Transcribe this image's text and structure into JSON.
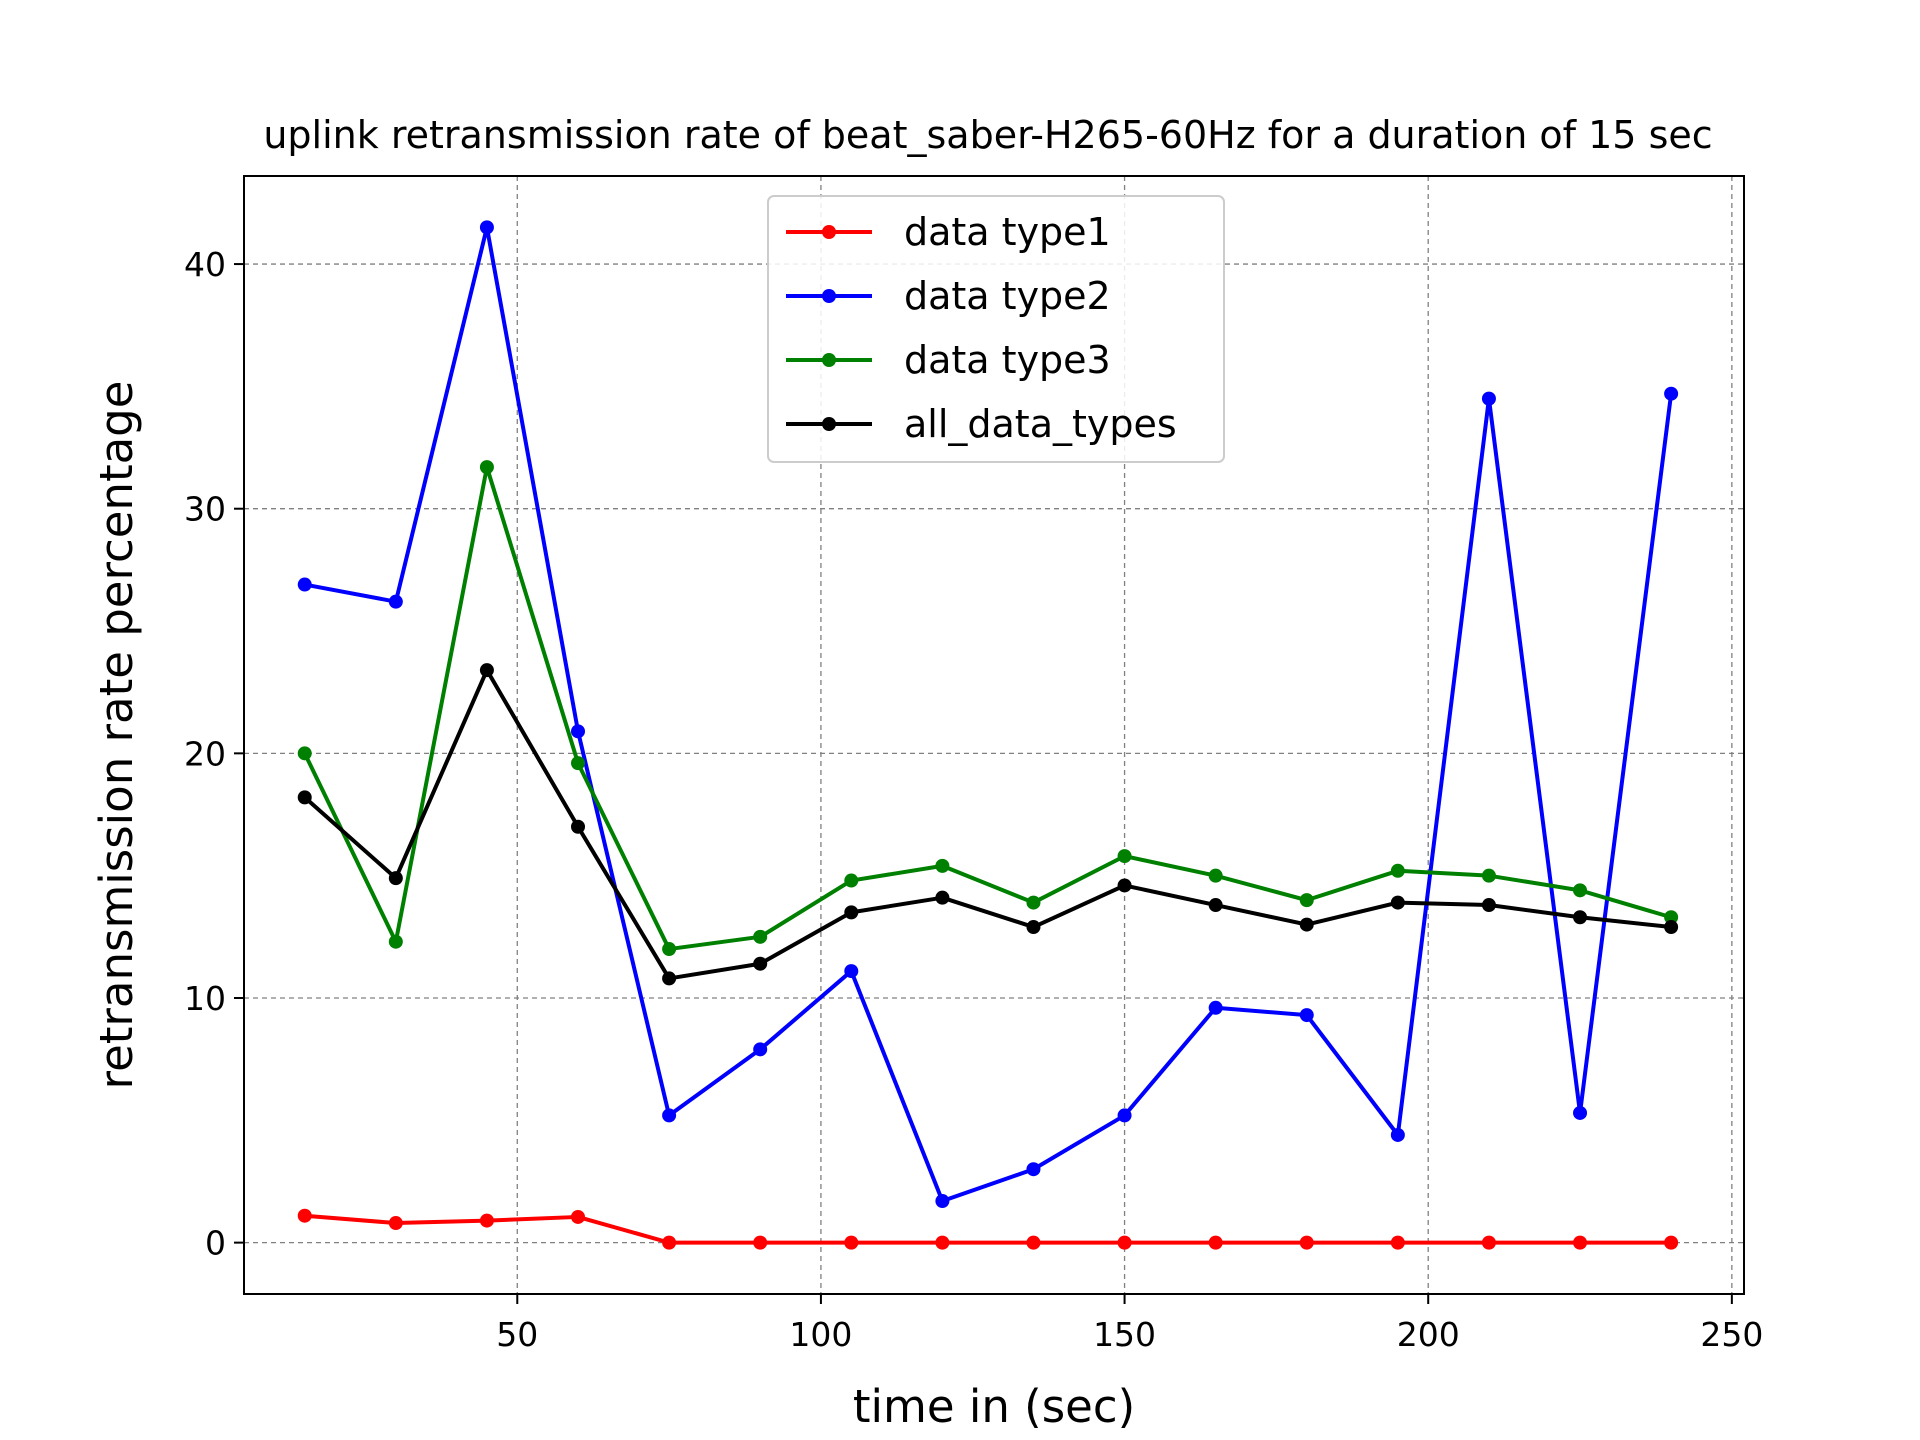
{
  "chart_data": {
    "type": "line",
    "title": "uplink retransmission rate of beat_saber-H265-60Hz for a duration of 15 sec",
    "xlabel": "time in (sec)",
    "ylabel": "retransmission rate percentage",
    "xlim": [
      5,
      252
    ],
    "ylim": [
      -2.1,
      43.6
    ],
    "xticks": [
      50,
      100,
      150,
      200,
      250
    ],
    "yticks": [
      0,
      10,
      20,
      30,
      40
    ],
    "grid": true,
    "legend_position": "upper-center",
    "x": [
      15,
      30,
      45,
      60,
      75,
      90,
      105,
      120,
      135,
      150,
      165,
      180,
      195,
      210,
      225,
      240
    ],
    "series": [
      {
        "name": "data type1",
        "color": "#ff0000",
        "values": [
          1.1,
          0.8,
          0.9,
          1.05,
          0,
          0,
          0,
          0,
          0,
          0,
          0,
          0,
          0,
          0,
          0,
          0
        ]
      },
      {
        "name": "data type2",
        "color": "#0000ff",
        "values": [
          26.9,
          26.2,
          41.5,
          20.9,
          5.2,
          7.9,
          11.1,
          1.7,
          3.0,
          5.2,
          9.6,
          9.3,
          4.4,
          34.5,
          5.3,
          34.7
        ]
      },
      {
        "name": "data type3",
        "color": "#008000",
        "values": [
          20.0,
          12.3,
          31.7,
          19.6,
          12.0,
          12.5,
          14.8,
          15.4,
          13.9,
          15.8,
          15.0,
          14.0,
          15.2,
          15.0,
          14.4,
          13.3
        ]
      },
      {
        "name": "all_data_types",
        "color": "#000000",
        "values": [
          18.2,
          14.9,
          23.4,
          17.0,
          10.8,
          11.4,
          13.5,
          14.1,
          12.9,
          14.6,
          13.8,
          13.0,
          13.9,
          13.8,
          13.3,
          12.9
        ]
      }
    ]
  }
}
